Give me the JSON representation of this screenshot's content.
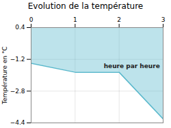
{
  "chart_data": {
    "type": "line",
    "title": "Evolution de la température",
    "ylabel": "Température en °C",
    "x": [
      0,
      1,
      2,
      3
    ],
    "values": [
      -1.4,
      -1.85,
      -1.85,
      -4.2
    ],
    "color": "#5ab8cc",
    "xlim": [
      0,
      3
    ],
    "ylim": [
      -4.4,
      0.4
    ],
    "xticks": [
      0,
      1,
      2,
      3
    ],
    "yticks": [
      -4.4,
      -2.8,
      -1.2,
      0.4
    ],
    "grid": true,
    "annotations": [
      {
        "text": "heure par heure",
        "x": 1.65,
        "y": -1.55
      }
    ]
  }
}
